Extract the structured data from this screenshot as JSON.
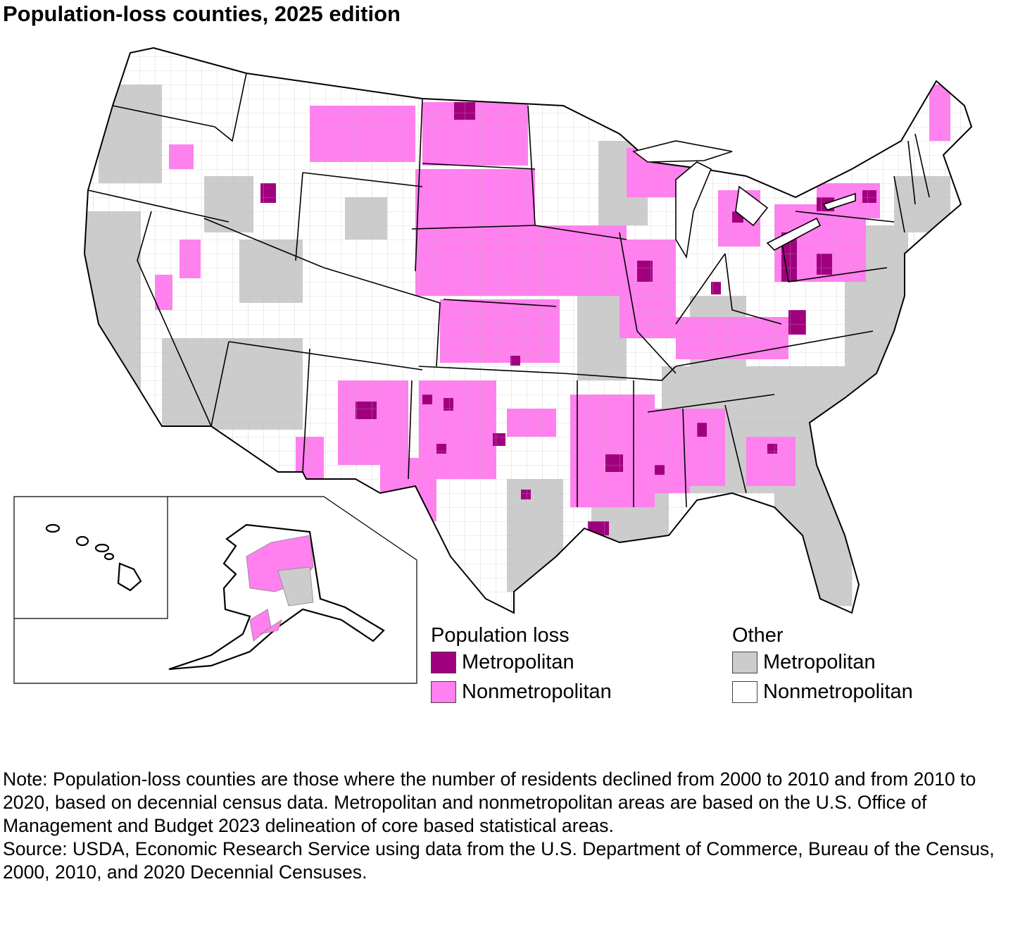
{
  "title": "Population-loss counties, 2025 edition",
  "legend": {
    "loss": {
      "heading": "Population loss",
      "items": [
        {
          "label": "Metropolitan",
          "color": "#a0007e"
        },
        {
          "label": "Nonmetropolitan",
          "color": "#ff80ee"
        }
      ]
    },
    "other": {
      "heading": "Other",
      "items": [
        {
          "label": "Metropolitan",
          "color": "#cccccc"
        },
        {
          "label": "Nonmetropolitan",
          "color": "#ffffff"
        }
      ]
    }
  },
  "note": "Note: Population-loss counties are those where the number of residents declined from 2000 to 2010 and from 2010 to 2020, based on decennial census data. Metropolitan and nonmetropolitan areas are based on the U.S. Office of Management and Budget 2023 delineation of core based statistical areas.",
  "source": "Source: USDA, Economic Research Service using data from the U.S. Department of Commerce, Bureau of the Census, 2000, 2010, and 2020 Decennial Censuses."
}
